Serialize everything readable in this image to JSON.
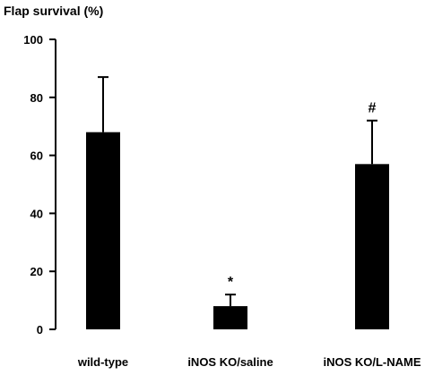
{
  "chart_data": {
    "type": "bar",
    "title": "",
    "ylabel": "Flap survival (%)",
    "xlabel": "",
    "categories": [
      "wild-type",
      "iNOS KO/saline",
      "iNOS KO/L-NAME"
    ],
    "values": [
      68,
      8,
      57
    ],
    "errors": [
      19,
      4,
      15
    ],
    "annotations": [
      "",
      "*",
      "#"
    ],
    "ylim": [
      0,
      100
    ],
    "yticks": [
      0,
      20,
      40,
      60,
      80,
      100
    ],
    "ytick_labels": [
      "0",
      "20",
      "40",
      "60",
      "80",
      "100"
    ],
    "grid": false,
    "legend": "none",
    "bar_color": "#000000"
  }
}
